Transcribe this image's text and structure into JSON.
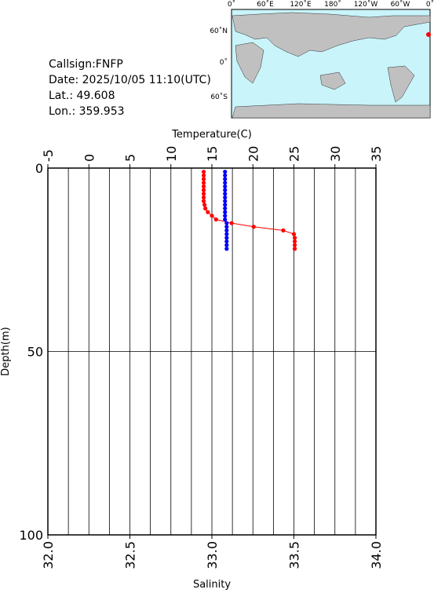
{
  "info": [
    "Callsign:FNFP",
    "Date:  2025/10/05 11:10(UTC)",
    "Lat.:  49.608",
    "Lon.:  359.953"
  ],
  "map": {
    "lon_labels": [
      "0˚",
      "60˚E",
      "120˚E",
      "180˚",
      "120˚W",
      "60˚W",
      "0˚"
    ],
    "lat_labels": [
      "60˚N",
      "0˚",
      "60˚S"
    ]
  },
  "chart_data": {
    "type": "profile",
    "xlabel": "Temperature(C)",
    "x2label": "Salinity",
    "ylabel": "Depth(m)",
    "depth": [
      1,
      2,
      3,
      4,
      5,
      6,
      7,
      8,
      9,
      10,
      11,
      12,
      13,
      14,
      15,
      16,
      17,
      18,
      19,
      20,
      21,
      22
    ],
    "series": [
      {
        "name": "Temperature",
        "color": "#ff0000",
        "axis": "x",
        "line": true,
        "values": [
          14.0,
          14.0,
          14.0,
          14.0,
          14.0,
          14.0,
          14.0,
          14.0,
          14.0,
          14.1,
          14.2,
          14.5,
          15.0,
          15.5,
          17.4,
          20.1,
          23.7,
          25.0,
          25.1,
          25.1,
          25.1,
          25.1
        ]
      },
      {
        "name": "Salinity",
        "color": "#0000ff",
        "axis": "x2",
        "line": false,
        "values": [
          33.08,
          33.08,
          33.08,
          33.08,
          33.08,
          33.08,
          33.08,
          33.08,
          33.08,
          33.08,
          33.08,
          33.08,
          33.08,
          33.08,
          33.09,
          33.09,
          33.09,
          33.09,
          33.09,
          33.09,
          33.09,
          33.09
        ]
      }
    ],
    "xlim": [
      -5,
      35
    ],
    "xticks": [
      -5,
      0,
      5,
      10,
      15,
      20,
      25,
      30,
      35
    ],
    "xgrid": [
      -2.5,
      0,
      2.5,
      5,
      7.5,
      10,
      12.5,
      15,
      17.5,
      20,
      22.5,
      25,
      27.5,
      30,
      32.5
    ],
    "x2lim": [
      32.0,
      34.0
    ],
    "x2ticks": [
      {
        "value": 32.0,
        "label": "32.0"
      },
      {
        "value": 32.5,
        "label": "32.5"
      },
      {
        "value": 33.0,
        "label": "33.0"
      },
      {
        "value": 33.5,
        "label": "33.5"
      },
      {
        "value": 34.0,
        "label": "34.0"
      }
    ],
    "ylim": [
      0,
      100
    ],
    "yticks": [
      0,
      50,
      100
    ]
  }
}
